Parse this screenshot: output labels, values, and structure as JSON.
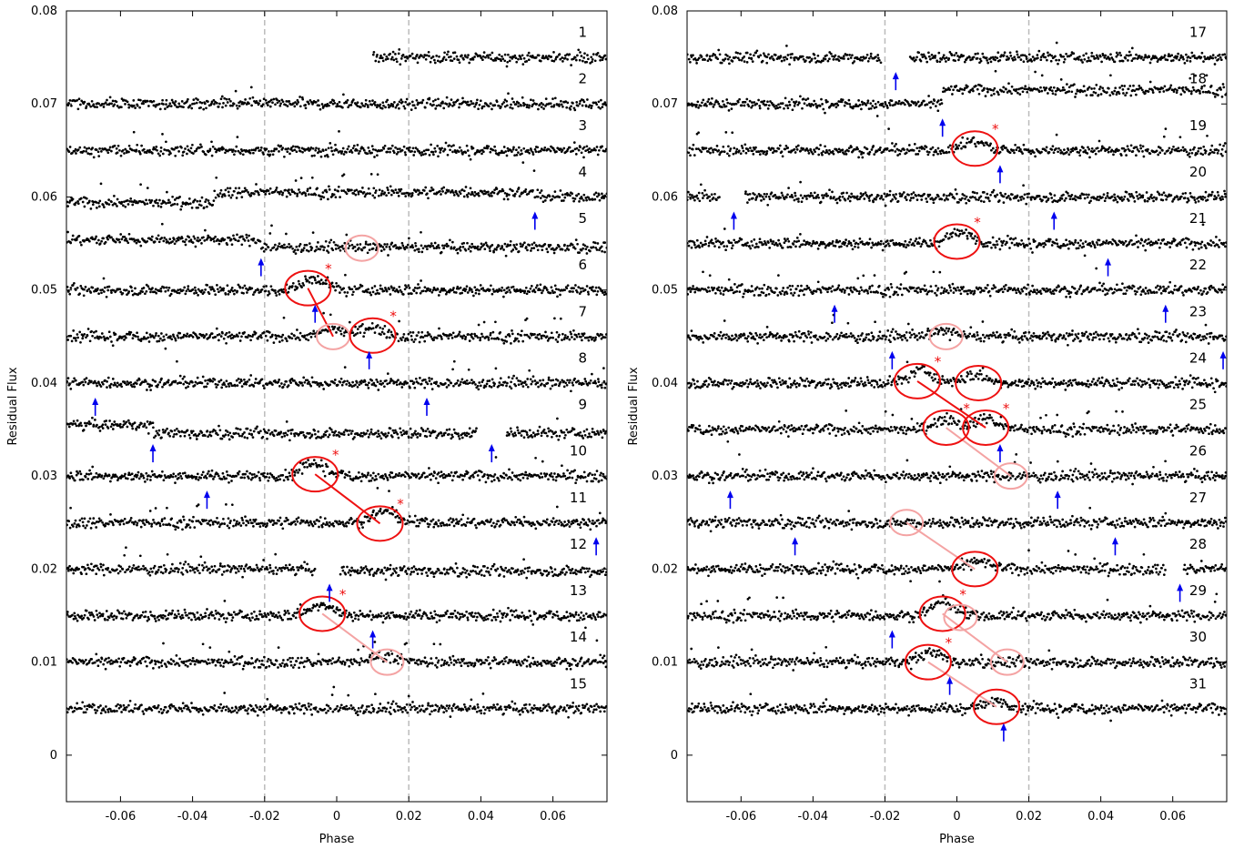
{
  "colors": {
    "points": "#000000",
    "arrow": "#0000ee",
    "circle_strong": "#ee1111",
    "circle_faint": "#f4a3a3",
    "guide": "#bbbbbb"
  },
  "chart_data": [
    {
      "type": "scatter",
      "xlabel": "Phase",
      "ylabel": "Residual Flux",
      "xlim": [
        -0.075,
        0.075
      ],
      "ylim": [
        -0.005,
        0.08
      ],
      "xticks": [
        "-0.06",
        "-0.04",
        "-0.02",
        "0",
        "0.02",
        "0.04",
        "0.06"
      ],
      "xtick_values": [
        -0.06,
        -0.04,
        -0.02,
        0,
        0.02,
        0.04,
        0.06
      ],
      "yticks": [
        "0",
        "0.01",
        "0.02",
        "0.03",
        "0.04",
        "0.05",
        "0.06",
        "0.07",
        "0.08"
      ],
      "ytick_values": [
        0,
        0.01,
        0.02,
        0.03,
        0.04,
        0.05,
        0.06,
        0.07,
        0.08
      ],
      "guide_lines_x": [
        -0.02,
        0.02
      ],
      "series": [
        {
          "label": "1",
          "offset": 0.075,
          "segments": [
            [
              0.01,
              0.075,
              0
            ]
          ]
        },
        {
          "label": "2",
          "offset": 0.07,
          "segments": [
            [
              -0.075,
              0.075,
              0
            ]
          ]
        },
        {
          "label": "3",
          "offset": 0.065,
          "segments": [
            [
              -0.075,
              0.075,
              0
            ]
          ]
        },
        {
          "label": "4",
          "offset": 0.06,
          "segments": [
            [
              -0.075,
              -0.034,
              -0.0006
            ],
            [
              -0.034,
              0.055,
              0.0005
            ],
            [
              0.055,
              0.075,
              0
            ]
          ]
        },
        {
          "label": "5",
          "offset": 0.055,
          "segments": [
            [
              -0.075,
              -0.021,
              0.0004
            ],
            [
              -0.021,
              0.075,
              -0.0004
            ]
          ]
        },
        {
          "label": "6",
          "offset": 0.05,
          "segments": [
            [
              -0.075,
              0.075,
              0
            ]
          ]
        },
        {
          "label": "7",
          "offset": 0.045,
          "segments": [
            [
              -0.075,
              0.075,
              0
            ]
          ]
        },
        {
          "label": "8",
          "offset": 0.04,
          "segments": [
            [
              -0.075,
              0.075,
              0
            ]
          ]
        },
        {
          "label": "9",
          "offset": 0.035,
          "segments": [
            [
              -0.075,
              -0.051,
              0.0005
            ],
            [
              -0.051,
              0.039,
              -0.0004
            ],
            [
              0.047,
              0.075,
              -0.0004
            ]
          ]
        },
        {
          "label": "10",
          "offset": 0.03,
          "segments": [
            [
              -0.075,
              0.075,
              0
            ]
          ]
        },
        {
          "label": "11",
          "offset": 0.025,
          "segments": [
            [
              -0.075,
              0.075,
              0
            ]
          ]
        },
        {
          "label": "12",
          "offset": 0.02,
          "segments": [
            [
              -0.075,
              -0.006,
              0
            ],
            [
              0.001,
              0.075,
              -0.0002
            ]
          ]
        },
        {
          "label": "13",
          "offset": 0.015,
          "segments": [
            [
              -0.075,
              0.075,
              0
            ]
          ]
        },
        {
          "label": "14",
          "offset": 0.01,
          "segments": [
            [
              -0.075,
              0.075,
              0
            ]
          ]
        },
        {
          "label": "15",
          "offset": 0.005,
          "segments": [
            [
              -0.075,
              0.075,
              0
            ]
          ]
        }
      ],
      "bumps": [
        {
          "row": 6,
          "x": -0.006,
          "h": 0.0012
        },
        {
          "row": 7,
          "x": -0.001,
          "h": 0.0008
        },
        {
          "row": 7,
          "x": 0.01,
          "h": 0.001
        },
        {
          "row": 10,
          "x": -0.006,
          "h": 0.0014
        },
        {
          "row": 11,
          "x": 0.013,
          "h": 0.0012
        },
        {
          "row": 13,
          "x": -0.004,
          "h": 0.0012
        },
        {
          "row": 14,
          "x": 0.013,
          "h": 0.0008
        }
      ],
      "circles": [
        {
          "x": 0.007,
          "y": 0.0545,
          "style": "faint"
        },
        {
          "x": -0.008,
          "y": 0.0502,
          "style": "strong",
          "star": true
        },
        {
          "x": -0.001,
          "y": 0.045,
          "style": "faint"
        },
        {
          "x": 0.01,
          "y": 0.0451,
          "style": "strong",
          "star": true
        },
        {
          "x": -0.006,
          "y": 0.0302,
          "style": "strong",
          "star": true
        },
        {
          "x": 0.012,
          "y": 0.0249,
          "style": "strong",
          "star": true
        },
        {
          "x": -0.004,
          "y": 0.0152,
          "style": "strong",
          "star": true
        },
        {
          "x": 0.014,
          "y": 0.01,
          "style": "faint"
        }
      ],
      "connectors": [
        {
          "from": [
            -0.008,
            0.0502
          ],
          "to": [
            -0.001,
            0.045
          ],
          "style": "strong"
        },
        {
          "from": [
            -0.006,
            0.0302
          ],
          "to": [
            0.012,
            0.0249
          ],
          "style": "strong"
        },
        {
          "from": [
            -0.004,
            0.0152
          ],
          "to": [
            0.014,
            0.01
          ],
          "style": "faint"
        }
      ],
      "arrows": [
        {
          "x": 0.055,
          "row": 4
        },
        {
          "x": -0.021,
          "row": 5
        },
        {
          "x": -0.006,
          "row": 6
        },
        {
          "x": 0.009,
          "row": 7
        },
        {
          "x": -0.067,
          "row": 8
        },
        {
          "x": 0.025,
          "row": 8
        },
        {
          "x": -0.051,
          "row": 9
        },
        {
          "x": 0.043,
          "row": 9
        },
        {
          "x": -0.036,
          "row": 10
        },
        {
          "x": 0.072,
          "row": 11
        },
        {
          "x": -0.002,
          "row": 12
        },
        {
          "x": 0.01,
          "row": 13
        }
      ]
    },
    {
      "type": "scatter",
      "xlabel": "Phase",
      "ylabel": "Residual Flux",
      "xlim": [
        -0.075,
        0.075
      ],
      "ylim": [
        -0.005,
        0.08
      ],
      "xticks": [
        "-0.06",
        "-0.04",
        "-0.02",
        "0",
        "0.02",
        "0.04",
        "0.06"
      ],
      "xtick_values": [
        -0.06,
        -0.04,
        -0.02,
        0,
        0.02,
        0.04,
        0.06
      ],
      "yticks": [
        "0",
        "0.01",
        "0.02",
        "0.03",
        "0.04",
        "0.05",
        "0.06",
        "0.07",
        "0.08"
      ],
      "ytick_values": [
        0,
        0.01,
        0.02,
        0.03,
        0.04,
        0.05,
        0.06,
        0.07,
        0.08
      ],
      "guide_lines_x": [
        -0.02,
        0.02
      ],
      "series": [
        {
          "label": "17",
          "offset": 0.075,
          "segments": [
            [
              -0.075,
              -0.021,
              0
            ],
            [
              -0.013,
              0.075,
              0
            ]
          ]
        },
        {
          "label": "18",
          "offset": 0.07,
          "segments": [
            [
              -0.075,
              -0.004,
              0
            ],
            [
              -0.004,
              0.075,
              0.0015
            ]
          ]
        },
        {
          "label": "19",
          "offset": 0.065,
          "segments": [
            [
              -0.075,
              0.075,
              0
            ]
          ]
        },
        {
          "label": "20",
          "offset": 0.06,
          "segments": [
            [
              -0.075,
              -0.066,
              0
            ],
            [
              -0.059,
              0.075,
              0
            ]
          ]
        },
        {
          "label": "21",
          "offset": 0.055,
          "segments": [
            [
              -0.075,
              0.075,
              0
            ]
          ]
        },
        {
          "label": "22",
          "offset": 0.05,
          "segments": [
            [
              -0.075,
              0.075,
              0
            ]
          ]
        },
        {
          "label": "23",
          "offset": 0.045,
          "segments": [
            [
              -0.075,
              0.075,
              0
            ]
          ]
        },
        {
          "label": "24",
          "offset": 0.04,
          "segments": [
            [
              -0.075,
              0.075,
              0
            ]
          ]
        },
        {
          "label": "25",
          "offset": 0.035,
          "segments": [
            [
              -0.075,
              0.075,
              0
            ]
          ]
        },
        {
          "label": "26",
          "offset": 0.03,
          "segments": [
            [
              -0.075,
              0.075,
              0
            ]
          ]
        },
        {
          "label": "27",
          "offset": 0.025,
          "segments": [
            [
              -0.075,
              0.075,
              0
            ]
          ]
        },
        {
          "label": "28",
          "offset": 0.02,
          "segments": [
            [
              -0.075,
              0.058,
              0
            ],
            [
              0.063,
              0.075,
              0
            ]
          ]
        },
        {
          "label": "29",
          "offset": 0.015,
          "segments": [
            [
              -0.075,
              0.075,
              0
            ]
          ]
        },
        {
          "label": "30",
          "offset": 0.01,
          "segments": [
            [
              -0.075,
              0.075,
              0
            ]
          ]
        },
        {
          "label": "31",
          "offset": 0.005,
          "segments": [
            [
              -0.075,
              0.075,
              0
            ]
          ]
        }
      ],
      "bumps": [
        {
          "row": 19,
          "x": 0.005,
          "h": 0.001
        },
        {
          "row": 21,
          "x": 0.001,
          "h": 0.0012
        },
        {
          "row": 23,
          "x": -0.004,
          "h": 0.0006
        },
        {
          "row": 24,
          "x": -0.01,
          "h": 0.0014
        },
        {
          "row": 24,
          "x": 0.005,
          "h": 0.0008
        },
        {
          "row": 25,
          "x": -0.003,
          "h": 0.0012
        },
        {
          "row": 25,
          "x": 0.008,
          "h": 0.0012
        },
        {
          "row": 28,
          "x": 0.006,
          "h": 0.0008
        },
        {
          "row": 29,
          "x": -0.004,
          "h": 0.0014
        },
        {
          "row": 30,
          "x": -0.007,
          "h": 0.001
        },
        {
          "row": 31,
          "x": 0.011,
          "h": 0.0008
        }
      ],
      "circles": [
        {
          "x": 0.005,
          "y": 0.0652,
          "style": "strong",
          "star": true
        },
        {
          "x": 0.0,
          "y": 0.0552,
          "style": "strong",
          "star": true
        },
        {
          "x": -0.003,
          "y": 0.045,
          "style": "faint"
        },
        {
          "x": -0.011,
          "y": 0.0402,
          "style": "strong",
          "star": true
        },
        {
          "x": 0.006,
          "y": 0.04,
          "style": "strong"
        },
        {
          "x": -0.003,
          "y": 0.0352,
          "style": "strong",
          "star": true
        },
        {
          "x": 0.008,
          "y": 0.0352,
          "style": "strong",
          "star": true
        },
        {
          "x": 0.015,
          "y": 0.03,
          "style": "faint"
        },
        {
          "x": -0.014,
          "y": 0.025,
          "style": "faint"
        },
        {
          "x": 0.005,
          "y": 0.02,
          "style": "strong"
        },
        {
          "x": -0.004,
          "y": 0.0152,
          "style": "strong",
          "star": true
        },
        {
          "x": 0.001,
          "y": 0.0148,
          "style": "faint"
        },
        {
          "x": -0.008,
          "y": 0.01,
          "style": "strong",
          "star": true
        },
        {
          "x": 0.014,
          "y": 0.01,
          "style": "faint"
        },
        {
          "x": 0.011,
          "y": 0.0052,
          "style": "strong"
        }
      ],
      "connectors": [
        {
          "from": [
            -0.011,
            0.0402
          ],
          "to": [
            0.008,
            0.0352
          ],
          "style": "strong"
        },
        {
          "from": [
            -0.003,
            0.0352
          ],
          "to": [
            0.015,
            0.03
          ],
          "style": "faint"
        },
        {
          "from": [
            -0.014,
            0.025
          ],
          "to": [
            0.005,
            0.02
          ],
          "style": "faint"
        },
        {
          "from": [
            -0.004,
            0.0152
          ],
          "to": [
            0.014,
            0.01
          ],
          "style": "faint"
        },
        {
          "from": [
            -0.008,
            0.01
          ],
          "to": [
            0.011,
            0.0052
          ],
          "style": "faint"
        }
      ],
      "arrows": [
        {
          "x": -0.017,
          "row": 17
        },
        {
          "x": -0.004,
          "row": 18
        },
        {
          "x": 0.012,
          "row": 19
        },
        {
          "x": -0.062,
          "row": 20
        },
        {
          "x": 0.027,
          "row": 20
        },
        {
          "x": 0.042,
          "row": 21
        },
        {
          "x": -0.034,
          "row": 22
        },
        {
          "x": 0.058,
          "row": 22
        },
        {
          "x": -0.018,
          "row": 23
        },
        {
          "x": 0.074,
          "row": 23
        },
        {
          "x": 0.012,
          "row": 25
        },
        {
          "x": -0.063,
          "row": 26
        },
        {
          "x": 0.028,
          "row": 26
        },
        {
          "x": -0.045,
          "row": 27
        },
        {
          "x": 0.044,
          "row": 27
        },
        {
          "x": 0.062,
          "row": 28
        },
        {
          "x": -0.018,
          "row": 29
        },
        {
          "x": -0.002,
          "row": 30
        },
        {
          "x": 0.013,
          "row": 31
        }
      ]
    }
  ]
}
